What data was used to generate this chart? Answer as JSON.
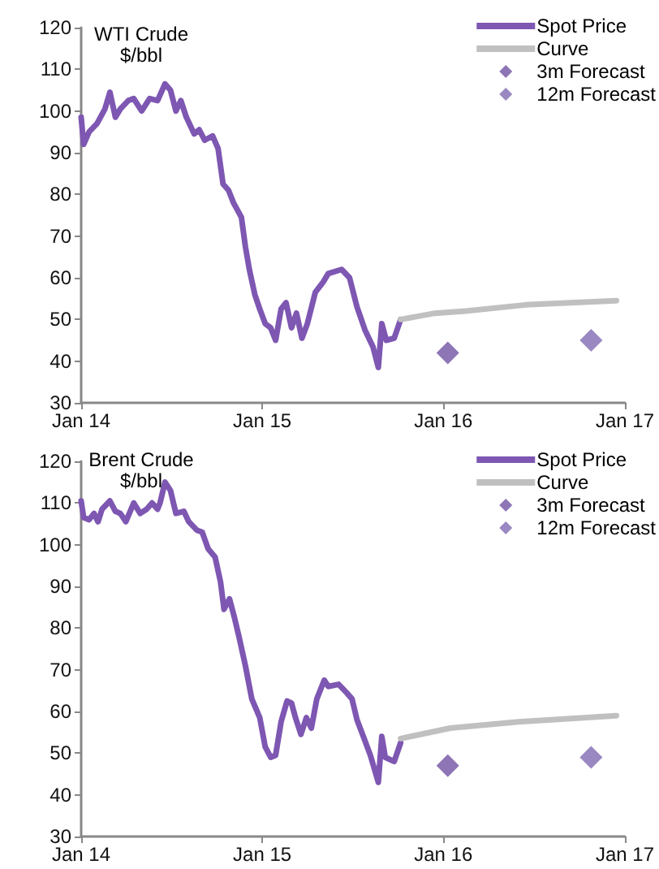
{
  "chart_data": [
    {
      "type": "line",
      "title": "WTI Crude",
      "subtitle": "$/bbl",
      "xlim": [
        "2014-01",
        "2017-01"
      ],
      "xticks": [
        {
          "value": "2014-01",
          "label": "Jan 14"
        },
        {
          "value": "2015-01",
          "label": "Jan 15"
        },
        {
          "value": "2016-01",
          "label": "Jan 16"
        },
        {
          "value": "2017-01",
          "label": "Jan 17"
        }
      ],
      "ylim": [
        30,
        120
      ],
      "yticks": [
        30,
        40,
        50,
        60,
        70,
        80,
        90,
        100,
        110,
        120
      ],
      "legend": "top right",
      "series": [
        {
          "name": "Spot Price",
          "color": "#7e57b2",
          "marker": "none",
          "x": [
            "2014-01-01",
            "2014-01-06",
            "2014-01-17",
            "2014-02-02",
            "2014-02-18",
            "2014-02-28",
            "2014-03-11",
            "2014-03-21",
            "2014-04-06",
            "2014-04-17",
            "2014-05-03",
            "2014-05-19",
            "2014-06-04",
            "2014-06-19",
            "2014-06-30",
            "2014-07-11",
            "2014-07-21",
            "2014-08-01",
            "2014-08-17",
            "2014-08-27",
            "2014-09-07",
            "2014-09-23",
            "2014-10-04",
            "2014-10-14",
            "2014-10-25",
            "2014-11-04",
            "2014-11-20",
            "2014-11-28",
            "2014-12-06",
            "2014-12-17",
            "2014-12-27",
            "2015-01-07",
            "2015-01-18",
            "2015-01-28",
            "2015-02-08",
            "2015-02-18",
            "2015-03-01",
            "2015-03-11",
            "2015-03-22",
            "2015-04-02",
            "2015-04-18",
            "2015-05-04",
            "2015-05-14",
            "2015-06-10",
            "2015-06-26",
            "2015-07-11",
            "2015-07-27",
            "2015-08-12",
            "2015-08-23",
            "2015-08-30",
            "2015-09-08",
            "2015-09-24",
            "2015-10-07"
          ],
          "values": [
            98.5,
            92,
            95,
            97,
            100.5,
            104.5,
            98.5,
            100.5,
            102.5,
            103,
            100,
            103,
            102.5,
            106.5,
            105,
            100,
            102.5,
            98.5,
            94.5,
            95.5,
            93,
            94,
            91,
            82.5,
            81,
            78,
            74.5,
            67.5,
            62,
            56,
            52.5,
            49,
            48,
            45,
            52.5,
            54,
            48,
            51.5,
            45.5,
            49,
            56.5,
            59,
            61,
            62,
            60,
            53,
            47.5,
            43.5,
            38.5,
            49,
            45,
            45.5,
            50
          ]
        },
        {
          "name": "Curve",
          "color": "#c0c0c0",
          "marker": "none",
          "x": [
            "2015-10-07",
            "2015-12-15",
            "2016-02-15",
            "2016-06-15",
            "2016-12-15"
          ],
          "values": [
            50,
            51.5,
            52,
            53.5,
            54.5
          ]
        },
        {
          "name": "3m Forecast",
          "type": "scatter",
          "color": "#8d75b6",
          "marker": "diamond",
          "x": [
            "2016-01-10"
          ],
          "values": [
            42
          ]
        },
        {
          "name": "12m Forecast",
          "type": "scatter",
          "color": "#9a88c2",
          "marker": "diamond",
          "x": [
            "2016-10-25"
          ],
          "values": [
            45
          ]
        }
      ]
    },
    {
      "type": "line",
      "title": "Brent Crude",
      "subtitle": "$/bbl",
      "xlim": [
        "2014-01",
        "2017-01"
      ],
      "xticks": [
        {
          "value": "2014-01",
          "label": "Jan 14"
        },
        {
          "value": "2015-01",
          "label": "Jan 15"
        },
        {
          "value": "2016-01",
          "label": "Jan 16"
        },
        {
          "value": "2017-01",
          "label": "Jan 17"
        }
      ],
      "ylim": [
        30,
        120
      ],
      "yticks": [
        30,
        40,
        50,
        60,
        70,
        80,
        90,
        100,
        110,
        120
      ],
      "legend": "top right",
      "series": [
        {
          "name": "Spot Price",
          "color": "#7e57b2",
          "marker": "none",
          "x": [
            "2014-01-01",
            "2014-01-06",
            "2014-01-17",
            "2014-01-27",
            "2014-02-04",
            "2014-02-12",
            "2014-02-28",
            "2014-03-11",
            "2014-03-21",
            "2014-04-01",
            "2014-04-17",
            "2014-04-30",
            "2014-05-13",
            "2014-05-24",
            "2014-06-04",
            "2014-06-09",
            "2014-06-19",
            "2014-06-30",
            "2014-07-11",
            "2014-07-27",
            "2014-08-06",
            "2014-08-22",
            "2014-09-02",
            "2014-09-14",
            "2014-09-28",
            "2014-10-09",
            "2014-10-16",
            "2014-10-27",
            "2014-11-06",
            "2014-11-15",
            "2014-11-28",
            "2014-12-11",
            "2014-12-27",
            "2015-01-07",
            "2015-01-18",
            "2015-01-28",
            "2015-02-08",
            "2015-02-20",
            "2015-03-01",
            "2015-03-09",
            "2015-03-20",
            "2015-03-31",
            "2015-04-10",
            "2015-04-21",
            "2015-05-06",
            "2015-05-14",
            "2015-06-04",
            "2015-06-20",
            "2015-07-01",
            "2015-07-11",
            "2015-07-27",
            "2015-08-07",
            "2015-08-23",
            "2015-08-30",
            "2015-09-06",
            "2015-09-24",
            "2015-10-07"
          ],
          "values": [
            110.5,
            106.5,
            106,
            107.5,
            105.5,
            108.5,
            110.5,
            108,
            107.5,
            105.5,
            110,
            107.5,
            108.5,
            110,
            108.5,
            110,
            115,
            113,
            107.5,
            108,
            105.5,
            103.5,
            103,
            99,
            97,
            91,
            84.5,
            87,
            82.5,
            78,
            71,
            63,
            58.5,
            51.5,
            49,
            49.5,
            57.5,
            62.5,
            62,
            58.5,
            54.5,
            58.5,
            56,
            63,
            67.5,
            66,
            66.5,
            64.5,
            63,
            58,
            53,
            49.5,
            43,
            54,
            49,
            48,
            52.5
          ]
        },
        {
          "name": "Curve",
          "color": "#c0c0c0",
          "marker": "none",
          "x": [
            "2015-10-07",
            "2016-01-15",
            "2016-06-01",
            "2016-12-15"
          ],
          "values": [
            53.5,
            56,
            57.5,
            59
          ]
        },
        {
          "name": "3m Forecast",
          "type": "scatter",
          "color": "#8d75b6",
          "marker": "diamond",
          "x": [
            "2016-01-10"
          ],
          "values": [
            47
          ]
        },
        {
          "name": "12m Forecast",
          "type": "scatter",
          "color": "#9a88c2",
          "marker": "diamond",
          "x": [
            "2016-10-25"
          ],
          "values": [
            49
          ]
        }
      ]
    }
  ]
}
